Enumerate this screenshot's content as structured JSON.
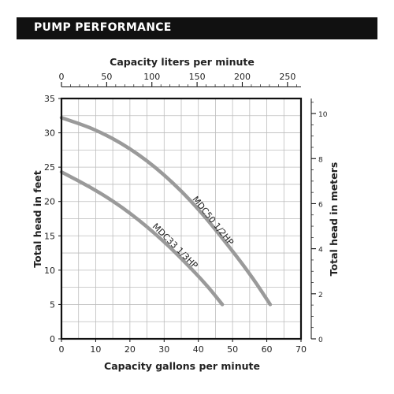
{
  "header": {
    "title": "PUMP PERFORMANCE"
  },
  "colors": {
    "header_bg": "#111111",
    "grid": "#bdbdbd",
    "frame": "#111111",
    "curve": "#9a9a9a",
    "text": "#222222"
  },
  "chart_data": {
    "type": "line",
    "title": "",
    "xlabel": "Capacity gallons per minute",
    "ylabel": "Total head in feet",
    "x2label": "Capacity liters per minute",
    "y2label": "Total head in meters",
    "xlim": [
      0,
      70
    ],
    "ylim": [
      0,
      35
    ],
    "x_ticks": [
      "0",
      "10",
      "20",
      "30",
      "40",
      "50",
      "60",
      "70"
    ],
    "y_ticks": [
      "0",
      "5",
      "10",
      "15",
      "20",
      "25",
      "30",
      "35"
    ],
    "x2_ticks": [
      {
        "label": "0",
        "value": 0
      },
      {
        "label": "50",
        "value": 50
      },
      {
        "label": "100",
        "value": 100
      },
      {
        "label": "150",
        "value": 150
      },
      {
        "label": "200",
        "value": 200
      },
      {
        "label": "250",
        "value": 250
      }
    ],
    "x2_unit_per_x": 3.785,
    "y2_ticks": [
      {
        "label": "0",
        "value": 0
      },
      {
        "label": "2",
        "value": 2
      },
      {
        "label": "4",
        "value": 4
      },
      {
        "label": "6",
        "value": 6
      },
      {
        "label": "8",
        "value": 8
      },
      {
        "label": "10",
        "value": 10
      }
    ],
    "y2_unit_per_y": 0.3048,
    "grid": true,
    "series": [
      {
        "name": "MDC50  1/2HP",
        "x": [
          0,
          10,
          20,
          30,
          40,
          50,
          56,
          61
        ],
        "y": [
          32.2,
          30.5,
          27.8,
          24.0,
          19.0,
          12.8,
          8.8,
          5.0
        ]
      },
      {
        "name": "MDC33  1/3HP",
        "x": [
          0,
          10,
          20,
          30,
          38,
          43,
          47
        ],
        "y": [
          24.3,
          21.7,
          18.4,
          14.2,
          10.2,
          7.5,
          5.0
        ]
      }
    ]
  }
}
